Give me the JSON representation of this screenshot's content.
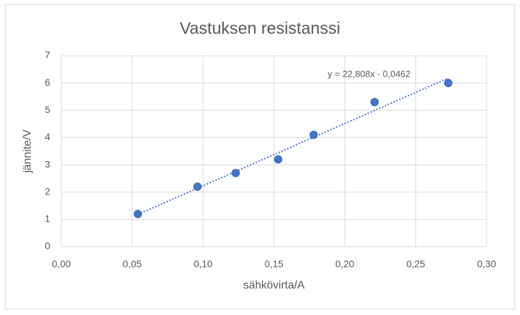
{
  "chart_data": {
    "type": "scatter",
    "title": "Vastuksen resistanssi",
    "x_label": "sähkövirta/A",
    "y_label": "jännite/V",
    "series": [
      {
        "name": "jännite",
        "color": "#4472c4",
        "x": [
          0.054,
          0.096,
          0.123,
          0.153,
          0.178,
          0.221,
          0.273
        ],
        "values": [
          1.2,
          2.2,
          2.7,
          3.2,
          4.1,
          5.3,
          6.0
        ]
      }
    ],
    "trendline": {
      "label": "y = 22,808x - 0,0462",
      "slope": 22.808,
      "intercept": -0.0462
    },
    "xlim": [
      0,
      0.3
    ],
    "xticks": [
      {
        "value": 0,
        "label": "0,00"
      },
      {
        "value": 0.05,
        "label": "0,05"
      },
      {
        "value": 0.1,
        "label": "0,10"
      },
      {
        "value": 0.15,
        "label": "0,15"
      },
      {
        "value": 0.2,
        "label": "0,20"
      },
      {
        "value": 0.25,
        "label": "0,25"
      },
      {
        "value": 0.3,
        "label": "0,30"
      }
    ],
    "ylim": [
      0,
      7
    ],
    "yticks": [
      0,
      1,
      2,
      3,
      4,
      5,
      6,
      7
    ],
    "grid": true
  }
}
